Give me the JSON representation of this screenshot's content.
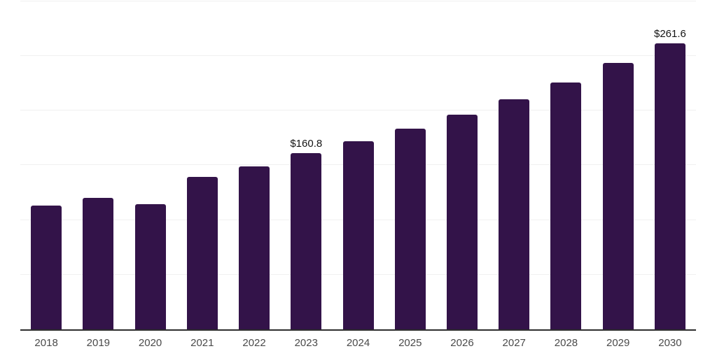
{
  "chart_data": {
    "type": "bar",
    "title": "",
    "xlabel": "",
    "ylabel": "",
    "categories": [
      "2018",
      "2019",
      "2020",
      "2021",
      "2022",
      "2023",
      "2024",
      "2025",
      "2026",
      "2027",
      "2028",
      "2029",
      "2030"
    ],
    "values": [
      113.0,
      120.3,
      114.6,
      139.1,
      149.0,
      160.8,
      171.8,
      183.5,
      196.3,
      210.4,
      225.5,
      243.2,
      261.6
    ],
    "data_labels": [
      null,
      null,
      null,
      null,
      null,
      "$160.8",
      null,
      null,
      null,
      null,
      null,
      null,
      "$261.6"
    ],
    "ylim": [
      0,
      300
    ],
    "ytick_interval": 50,
    "y_axis_labels_visible": false,
    "grid": "horizontal",
    "legend": "none"
  },
  "colors": {
    "background": "#ffffff",
    "bar": "#331349",
    "gridline": "#f0f0f0",
    "axis_line": "#2e2e2e",
    "tick_label": "#4a4a4a",
    "data_label": "#141414"
  }
}
